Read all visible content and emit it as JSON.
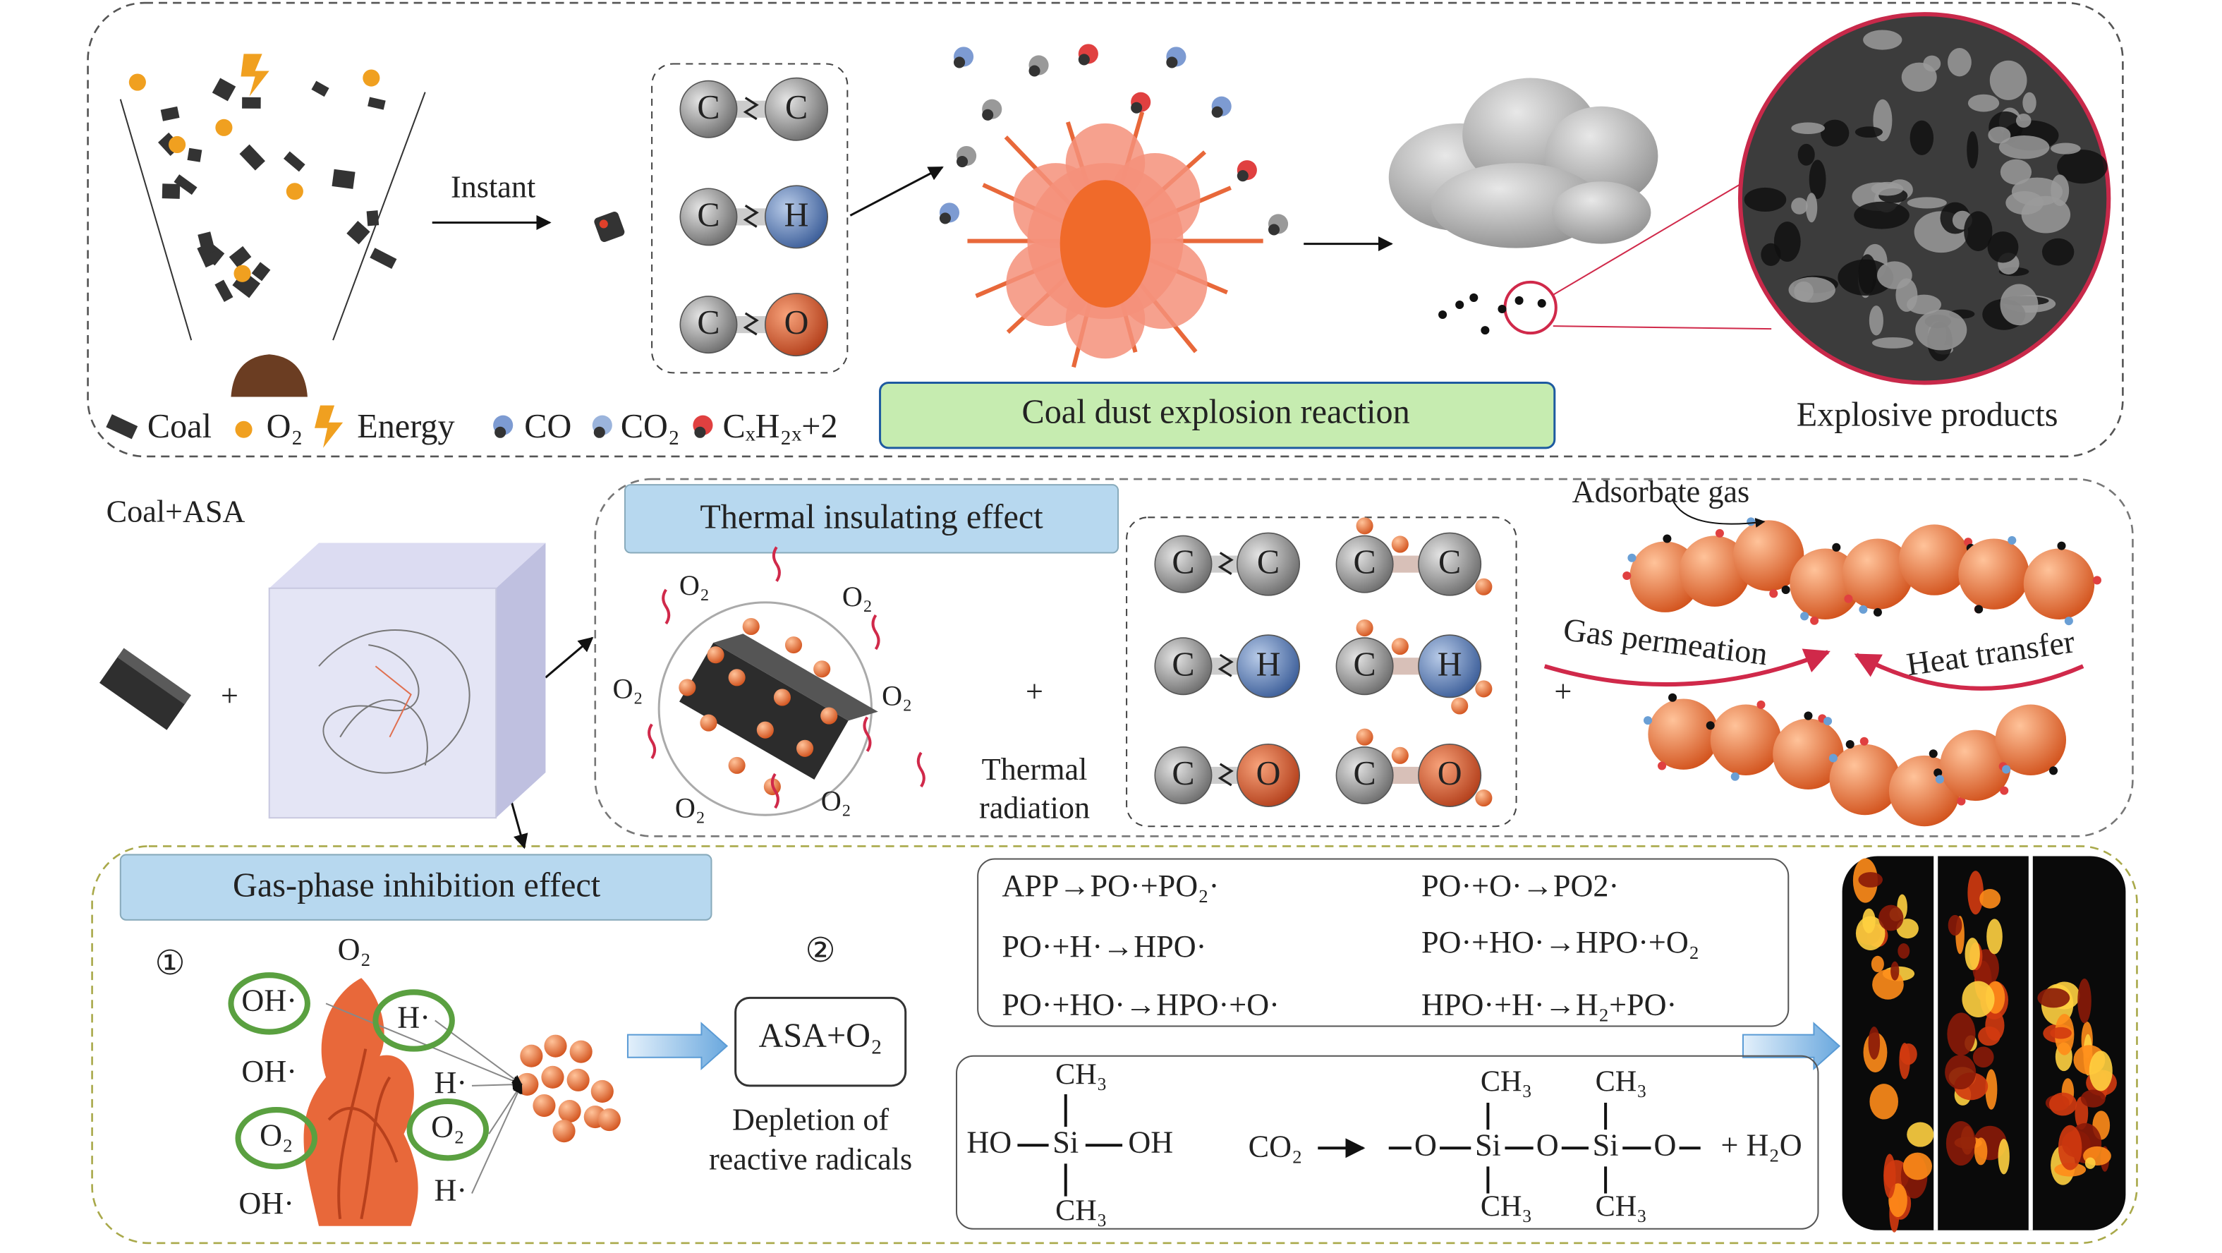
{
  "explosion_panel": {
    "instant_label": "Instant",
    "bonds": [
      {
        "left": "C",
        "right": "C"
      },
      {
        "left": "C",
        "right": "H"
      },
      {
        "left": "C",
        "right": "O"
      }
    ],
    "reaction_label": "Coal dust explosion reaction",
    "products_label": "Explosive products",
    "legend": [
      "Coal",
      "O₂",
      "Energy",
      "CO",
      "CO₂",
      "CₓH₂ₓ+2"
    ]
  },
  "insulation_panel": {
    "material_label": "Coal+ASA",
    "plus": "+",
    "effect_label": "Thermal insulating effect",
    "oxygen_label": "O₂",
    "radiation_label": [
      "Thermal",
      "radiation"
    ],
    "bonds": [
      {
        "left": "C",
        "right": "C"
      },
      {
        "left": "C",
        "right": "H"
      },
      {
        "left": "C",
        "right": "O"
      }
    ],
    "broken_bonds": [
      {
        "left": "C",
        "right": "C"
      },
      {
        "left": "C",
        "right": "H"
      },
      {
        "left": "C",
        "right": "O"
      }
    ],
    "adsorbate_label": "Adsorbate gas",
    "permeation_label": "Gas permeation",
    "heat_label": "Heat transfer"
  },
  "gas_phase_panel": {
    "effect_label": "Gas-phase inhibition effect",
    "step_markers": [
      "①",
      "②"
    ],
    "radicals": [
      "O₂",
      "OH·",
      "H·",
      "OH·",
      "H·",
      "O₂",
      "O₂",
      "H·",
      "OH·"
    ],
    "product_label": "ASA+O₂",
    "depletion_label": [
      "Depletion of",
      "reactive radicals"
    ],
    "reactions": [
      "APP→PO·+PO₂·",
      "PO·+O·→PO2·",
      "PO·+H·→HPO·",
      "PO·+HO·→HPO·+O₂",
      "PO·+HO·→HPO·+O·",
      "HPO·+H·→H₂+PO·"
    ],
    "silanol": {
      "top": "CH₃",
      "left": "HO",
      "center": "Si",
      "right": "OH",
      "bottom": "CH₃"
    },
    "condensation": {
      "reactant": "CO₂",
      "chain": [
        "O",
        "Si",
        "O",
        "Si",
        "O"
      ],
      "methyl": "CH₃",
      "product": "+ H₂O"
    }
  }
}
